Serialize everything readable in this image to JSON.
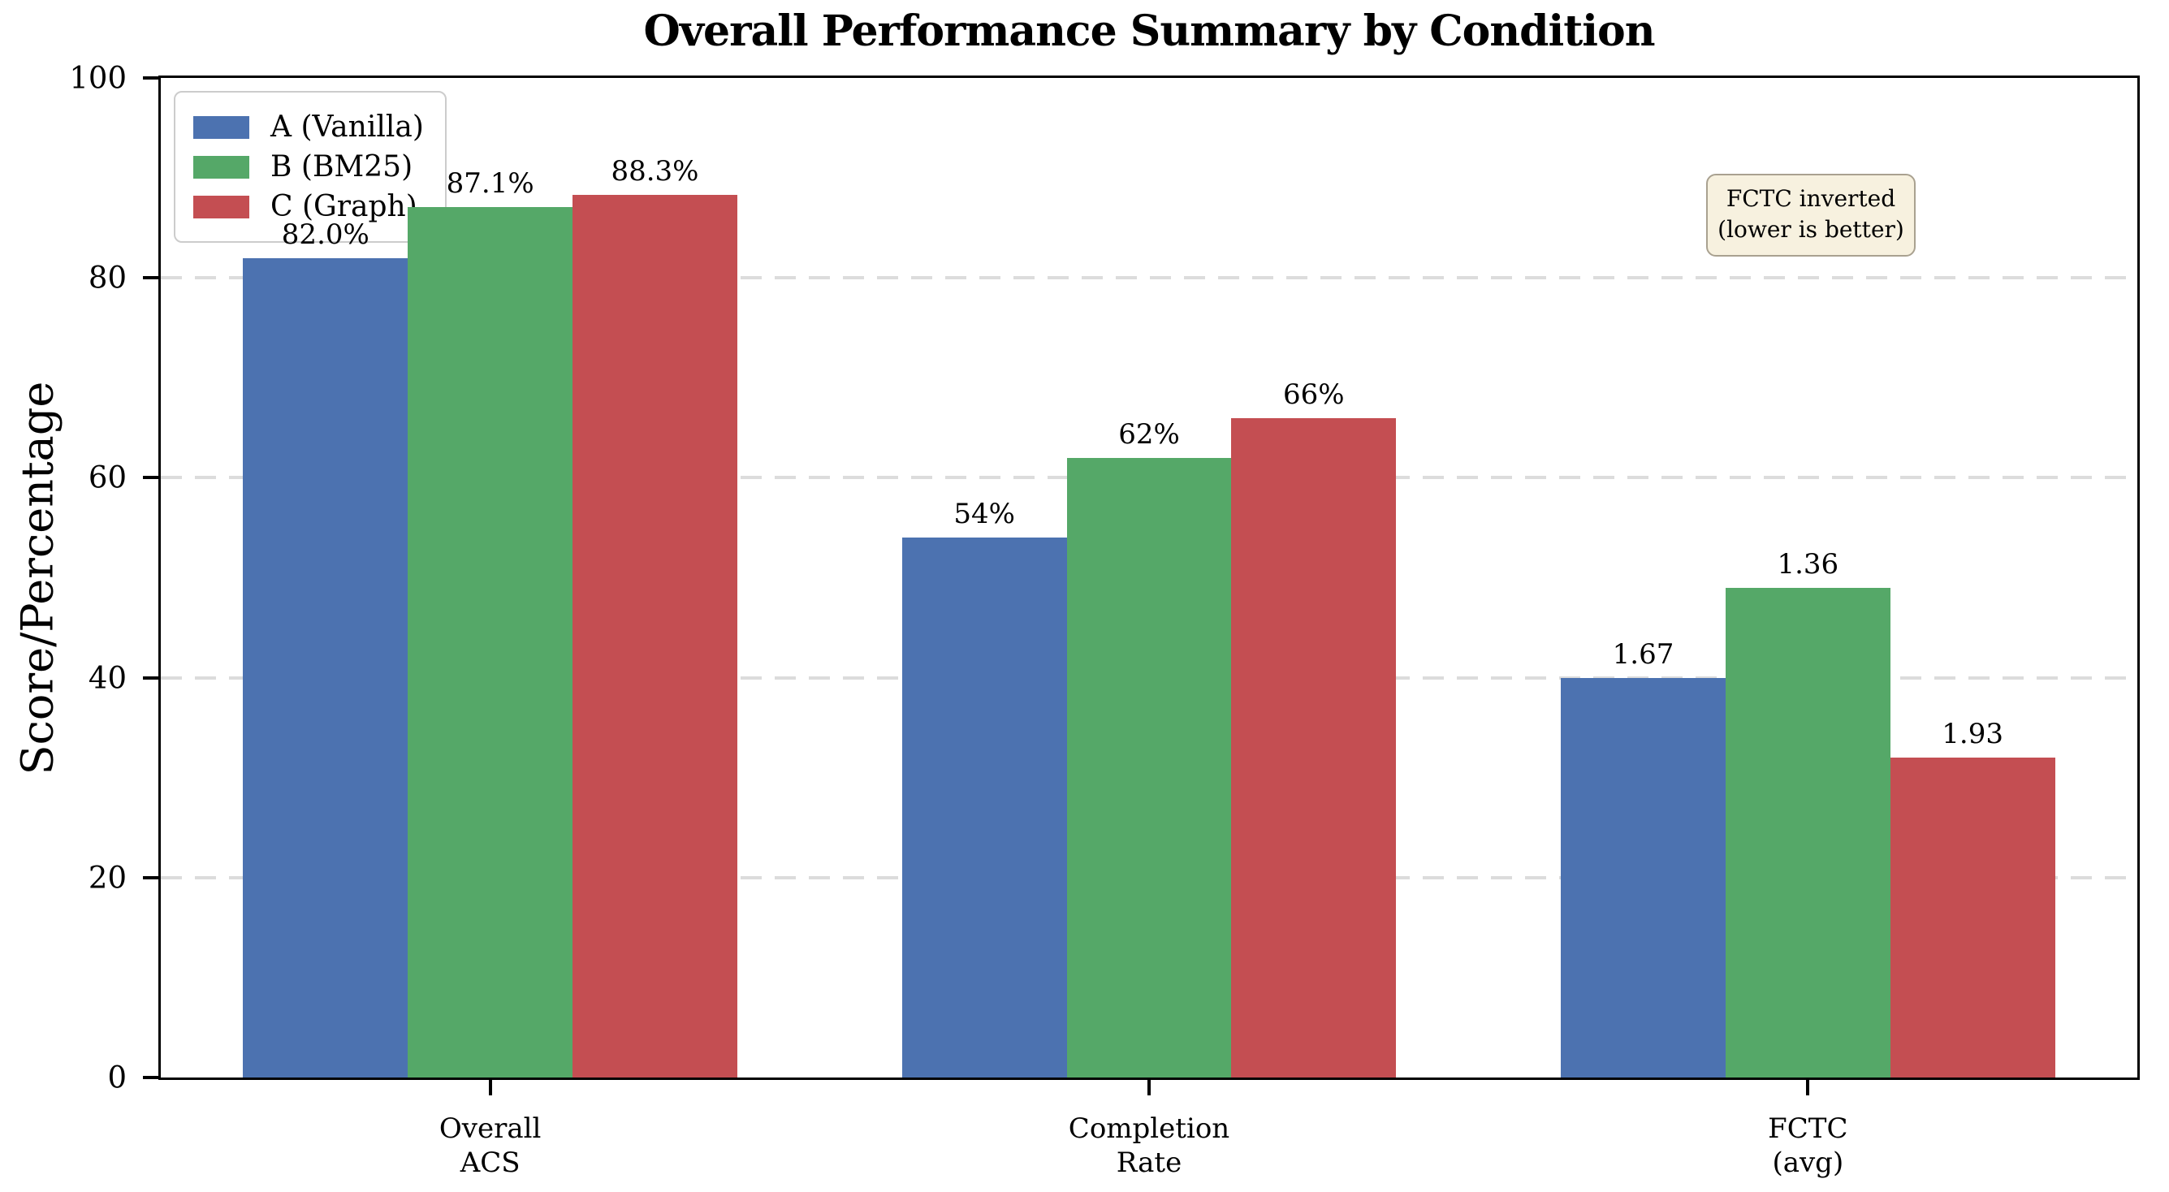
{
  "chart_data": {
    "type": "bar",
    "title": "Overall Performance Summary by Condition",
    "ylabel": "Score/Percentage",
    "ylim": [
      0,
      100
    ],
    "yticks": [
      0,
      20,
      40,
      60,
      80,
      100
    ],
    "grid": "horizontal dashed light-gray lines at 20, 40, 60, 80",
    "legend_position": "upper left",
    "categories": [
      [
        "Overall",
        "ACS"
      ],
      [
        "Completion",
        "Rate"
      ],
      [
        "FCTC",
        "(avg)"
      ]
    ],
    "series": [
      {
        "name": "A (Vanilla)",
        "color": "#4C72B0",
        "bar_heights": [
          82.0,
          54,
          40
        ],
        "value_labels": [
          "82.0%",
          "54%",
          "1.67"
        ]
      },
      {
        "name": "B (BM25)",
        "color": "#55A868",
        "bar_heights": [
          87.1,
          62,
          49
        ],
        "value_labels": [
          "87.1%",
          "62%",
          "1.36"
        ]
      },
      {
        "name": "C (Graph)",
        "color": "#C44E52",
        "bar_heights": [
          88.3,
          66,
          32
        ],
        "value_labels": [
          "88.3%",
          "66%",
          "1.93"
        ]
      }
    ],
    "annotation_lines": [
      "FCTC inverted",
      "(lower is better)"
    ],
    "notes": "FCTC (avg) bars are plotted inverted so lower raw times give context; labels show raw averages 1.67 / 1.36 / 1.93"
  },
  "colors": {
    "spine": "#000000",
    "grid": "#DCDCDC",
    "annotation_bg": "#F7F1DF",
    "annotation_border": "#A9A190",
    "legend_border": "#CCCCCC"
  }
}
